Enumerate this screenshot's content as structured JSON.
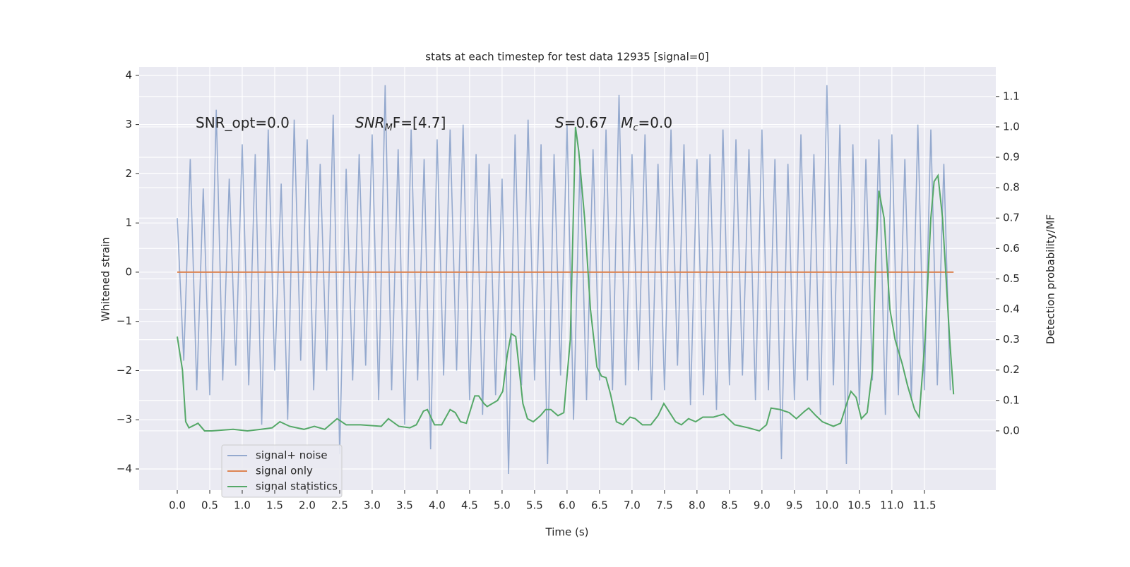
{
  "chart_data": {
    "type": "line",
    "title": "stats at each timestep for test data 12935 [signal=0]",
    "xlabel": "Time (s)",
    "ylabel": "Whitened strain",
    "y2label": "Detection probability/MF",
    "annotations": [
      {
        "parts": [
          "SNR_opt=0.0"
        ]
      },
      {
        "parts": [
          "SNR",
          "M",
          "F=[4.7]"
        ]
      },
      {
        "parts": [
          "S",
          "=0.67   ",
          "M",
          "c",
          "=0.0"
        ]
      }
    ],
    "grid": true,
    "legend": "lower left",
    "xlim": [
      -0.587,
      12.6
    ],
    "ylim": [
      -4.43,
      4.17
    ],
    "y2lim": [
      -0.195,
      1.197
    ],
    "xticks": [
      {
        "value": 0,
        "label": "0.0"
      },
      0.5,
      {
        "value": 1,
        "label": "1.0"
      },
      1.5,
      {
        "value": 2,
        "label": "2.0"
      },
      2.5,
      {
        "value": 3,
        "label": "3.0"
      },
      3.5,
      {
        "value": 4,
        "label": "4.0"
      },
      4.5,
      {
        "value": 5,
        "label": "5.0"
      },
      5.5,
      {
        "value": 6,
        "label": "6.0"
      },
      6.5,
      {
        "value": 7,
        "label": "7.0"
      },
      7.5,
      {
        "value": 8,
        "label": "8.0"
      },
      8.5,
      {
        "value": 9,
        "label": "9.0"
      },
      9.5,
      {
        "value": 10,
        "label": "10.0"
      },
      10.5,
      {
        "value": 11,
        "label": "11.0"
      },
      11.5
    ],
    "yticks": [
      {
        "value": -4,
        "label": "−4"
      },
      {
        "value": -3,
        "label": "−3"
      },
      {
        "value": -2,
        "label": "−2"
      },
      {
        "value": -1,
        "label": "−1"
      },
      0,
      1,
      2,
      3,
      4
    ],
    "y2ticks": [
      {
        "value": 0,
        "label": "0.0"
      },
      0.1,
      0.2,
      0.3,
      0.4,
      0.5,
      0.6,
      0.7,
      0.8,
      0.9,
      {
        "value": 1,
        "label": "1.0"
      },
      1.1
    ],
    "series": [
      {
        "name": "signal+ noise",
        "color": "#4c72b0",
        "x": [
          0,
          0.1,
          0.2,
          0.3,
          0.4,
          0.5,
          0.6,
          0.7,
          0.8,
          0.9,
          1,
          1.1,
          1.2,
          1.3,
          1.4,
          1.5,
          1.6,
          1.7,
          1.8,
          1.9,
          2,
          2.1,
          2.2,
          2.3,
          2.4,
          2.5,
          2.6,
          2.7,
          2.8,
          2.9,
          3,
          3.1,
          3.2,
          3.3,
          3.4,
          3.5,
          3.6,
          3.7,
          3.8,
          3.9,
          4,
          4.1,
          4.2,
          4.3,
          4.4,
          4.5,
          4.6,
          4.7,
          4.8,
          4.9,
          5,
          5.1,
          5.2,
          5.3,
          5.4,
          5.5,
          5.6,
          5.7,
          5.8,
          5.9,
          6,
          6.1,
          6.2,
          6.3,
          6.4,
          6.5,
          6.6,
          6.7,
          6.8,
          6.9,
          7,
          7.1,
          7.2,
          7.3,
          7.4,
          7.5,
          7.6,
          7.7,
          7.8,
          7.9,
          8,
          8.1,
          8.2,
          8.3,
          8.4,
          8.5,
          8.6,
          8.7,
          8.8,
          8.9,
          9,
          9.1,
          9.2,
          9.3,
          9.4,
          9.5,
          9.6,
          9.7,
          9.8,
          9.9,
          10,
          10.1,
          10.2,
          10.3,
          10.4,
          10.5,
          10.6,
          10.7,
          10.8,
          10.9,
          11,
          11.1,
          11.2,
          11.3,
          11.4,
          11.5,
          11.6,
          11.7,
          11.8,
          11.9
        ],
        "values": [
          1.1,
          -1.8,
          2.3,
          -2.4,
          1.7,
          -2.5,
          3.3,
          -2.2,
          1.9,
          -1.9,
          2.6,
          -2.3,
          2.4,
          -3.1,
          2.9,
          -2.0,
          1.8,
          -3.0,
          3.1,
          -1.8,
          2.7,
          -2.4,
          2.2,
          -2.0,
          3.2,
          -3.7,
          2.1,
          -2.2,
          2.4,
          -1.9,
          2.8,
          -2.6,
          3.8,
          -2.4,
          2.5,
          -3.1,
          2.9,
          -2.2,
          2.3,
          -3.6,
          2.7,
          -2.1,
          2.9,
          -2.0,
          3.0,
          -2.6,
          2.4,
          -2.9,
          2.2,
          -2.5,
          1.9,
          -4.1,
          2.8,
          -2.3,
          3.1,
          -2.2,
          2.6,
          -3.9,
          2.4,
          -2.1,
          3.0,
          -3.0,
          2.3,
          -2.6,
          2.5,
          -2.2,
          2.9,
          -2.4,
          3.6,
          -2.3,
          2.4,
          -2.0,
          2.8,
          -2.6,
          2.2,
          -2.4,
          2.9,
          -1.9,
          2.6,
          -2.7,
          2.3,
          -2.5,
          2.4,
          -2.8,
          2.9,
          -2.3,
          2.7,
          -2.1,
          2.5,
          -2.6,
          2.9,
          -2.4,
          2.3,
          -3.8,
          2.2,
          -2.6,
          2.8,
          -2.2,
          2.4,
          -2.9,
          3.8,
          -2.3,
          3.0,
          -3.9,
          2.6,
          -2.7,
          2.3,
          -2.2,
          2.7,
          -2.9,
          2.8,
          -2.5,
          2.3,
          -2.6,
          3.0,
          -2.4,
          2.9,
          -2.3,
          2.2,
          -2.4
        ]
      },
      {
        "name": "signal only",
        "color": "#dd8452",
        "x": [
          0,
          11.95
        ],
        "values": [
          0,
          0
        ]
      },
      {
        "name": "signal statistics",
        "color": "#55a868",
        "axis": "y2",
        "x": [
          0,
          0.08,
          0.13,
          0.18,
          0.32,
          0.42,
          0.53,
          0.86,
          1.08,
          1.29,
          1.46,
          1.58,
          1.73,
          1.95,
          2.11,
          2.27,
          2.46,
          2.6,
          2.82,
          3.14,
          3.25,
          3.41,
          3.58,
          3.68,
          3.79,
          3.85,
          3.96,
          4.07,
          4.2,
          4.28,
          4.36,
          4.45,
          4.58,
          4.64,
          4.72,
          4.77,
          4.93,
          5.01,
          5.08,
          5.14,
          5.21,
          5.32,
          5.39,
          5.48,
          5.59,
          5.67,
          5.75,
          5.86,
          5.95,
          6.05,
          6.13,
          6.18,
          6.27,
          6.36,
          6.46,
          6.53,
          6.6,
          6.67,
          6.76,
          6.86,
          6.97,
          7.05,
          7.16,
          7.29,
          7.4,
          7.49,
          7.58,
          7.67,
          7.76,
          7.87,
          7.98,
          8.09,
          8.25,
          8.41,
          8.58,
          8.79,
          8.96,
          9.07,
          9.14,
          9.28,
          9.42,
          9.53,
          9.66,
          9.72,
          9.83,
          9.93,
          10.1,
          10.21,
          10.32,
          10.37,
          10.45,
          10.53,
          10.62,
          10.7,
          10.75,
          10.8,
          10.88,
          10.97,
          11.05,
          11.16,
          11.24,
          11.35,
          11.42,
          11.51,
          11.6,
          11.65,
          11.71,
          11.78,
          11.89,
          11.95
        ],
        "values": [
          0.31,
          0.2,
          0.03,
          0.01,
          0.025,
          0.0,
          0.0,
          0.005,
          0.0,
          0.005,
          0.01,
          0.03,
          0.015,
          0.005,
          0.015,
          0.005,
          0.04,
          0.02,
          0.02,
          0.015,
          0.04,
          0.015,
          0.01,
          0.02,
          0.065,
          0.07,
          0.02,
          0.02,
          0.07,
          0.06,
          0.03,
          0.025,
          0.115,
          0.115,
          0.09,
          0.08,
          0.1,
          0.13,
          0.25,
          0.32,
          0.31,
          0.09,
          0.04,
          0.03,
          0.05,
          0.07,
          0.07,
          0.05,
          0.06,
          0.3,
          1.0,
          0.92,
          0.7,
          0.4,
          0.21,
          0.18,
          0.175,
          0.12,
          0.03,
          0.02,
          0.045,
          0.04,
          0.02,
          0.02,
          0.05,
          0.09,
          0.06,
          0.03,
          0.02,
          0.04,
          0.03,
          0.045,
          0.045,
          0.055,
          0.02,
          0.01,
          0.0,
          0.02,
          0.075,
          0.07,
          0.06,
          0.04,
          0.065,
          0.075,
          0.05,
          0.03,
          0.015,
          0.025,
          0.1,
          0.13,
          0.11,
          0.04,
          0.06,
          0.2,
          0.55,
          0.79,
          0.7,
          0.4,
          0.3,
          0.22,
          0.15,
          0.07,
          0.045,
          0.3,
          0.7,
          0.82,
          0.84,
          0.7,
          0.3,
          0.12
        ]
      }
    ]
  }
}
